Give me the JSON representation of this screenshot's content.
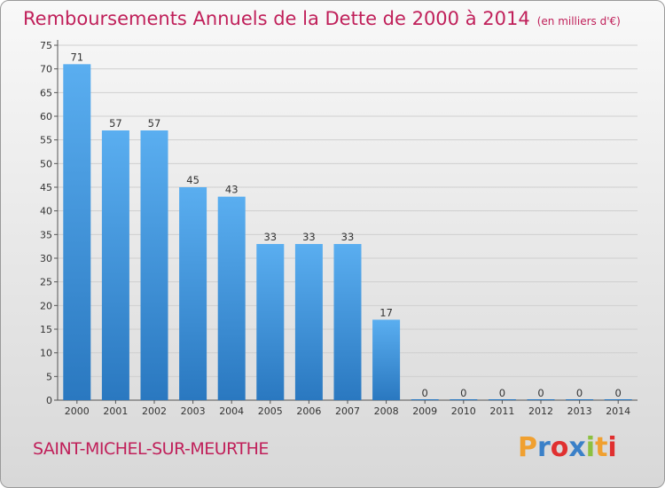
{
  "header": {
    "title": "Remboursements Annuels de la Dette de 2000 à 2014",
    "unit": "(en milliers d'€)"
  },
  "footer": {
    "commune": "SAINT-MICHEL-SUR-MEURTHE",
    "logo_letters": [
      "P",
      "r",
      "o",
      "x",
      "i",
      "t",
      "i"
    ],
    "logo_colors": [
      "#f0a030",
      "#3a80c8",
      "#e03030",
      "#3a80c8",
      "#8cc040",
      "#f0a030",
      "#e03030"
    ]
  },
  "chart_data": {
    "type": "bar",
    "title": "Remboursements Annuels de la Dette de 2000 à 2014",
    "ylabel": "(en milliers d'€)",
    "xlabel": "",
    "categories": [
      "2000",
      "2001",
      "2002",
      "2003",
      "2004",
      "2005",
      "2006",
      "2007",
      "2008",
      "2009",
      "2010",
      "2011",
      "2012",
      "2013",
      "2014"
    ],
    "values": [
      71,
      57,
      57,
      45,
      43,
      33,
      33,
      33,
      17,
      0,
      0,
      0,
      0,
      0,
      0
    ],
    "ylim": [
      0,
      75
    ],
    "yticks": [
      0,
      5,
      10,
      15,
      20,
      25,
      30,
      35,
      40,
      45,
      50,
      55,
      60,
      65,
      70,
      75
    ],
    "grid": true,
    "bar_color": "#3d8fd6"
  }
}
